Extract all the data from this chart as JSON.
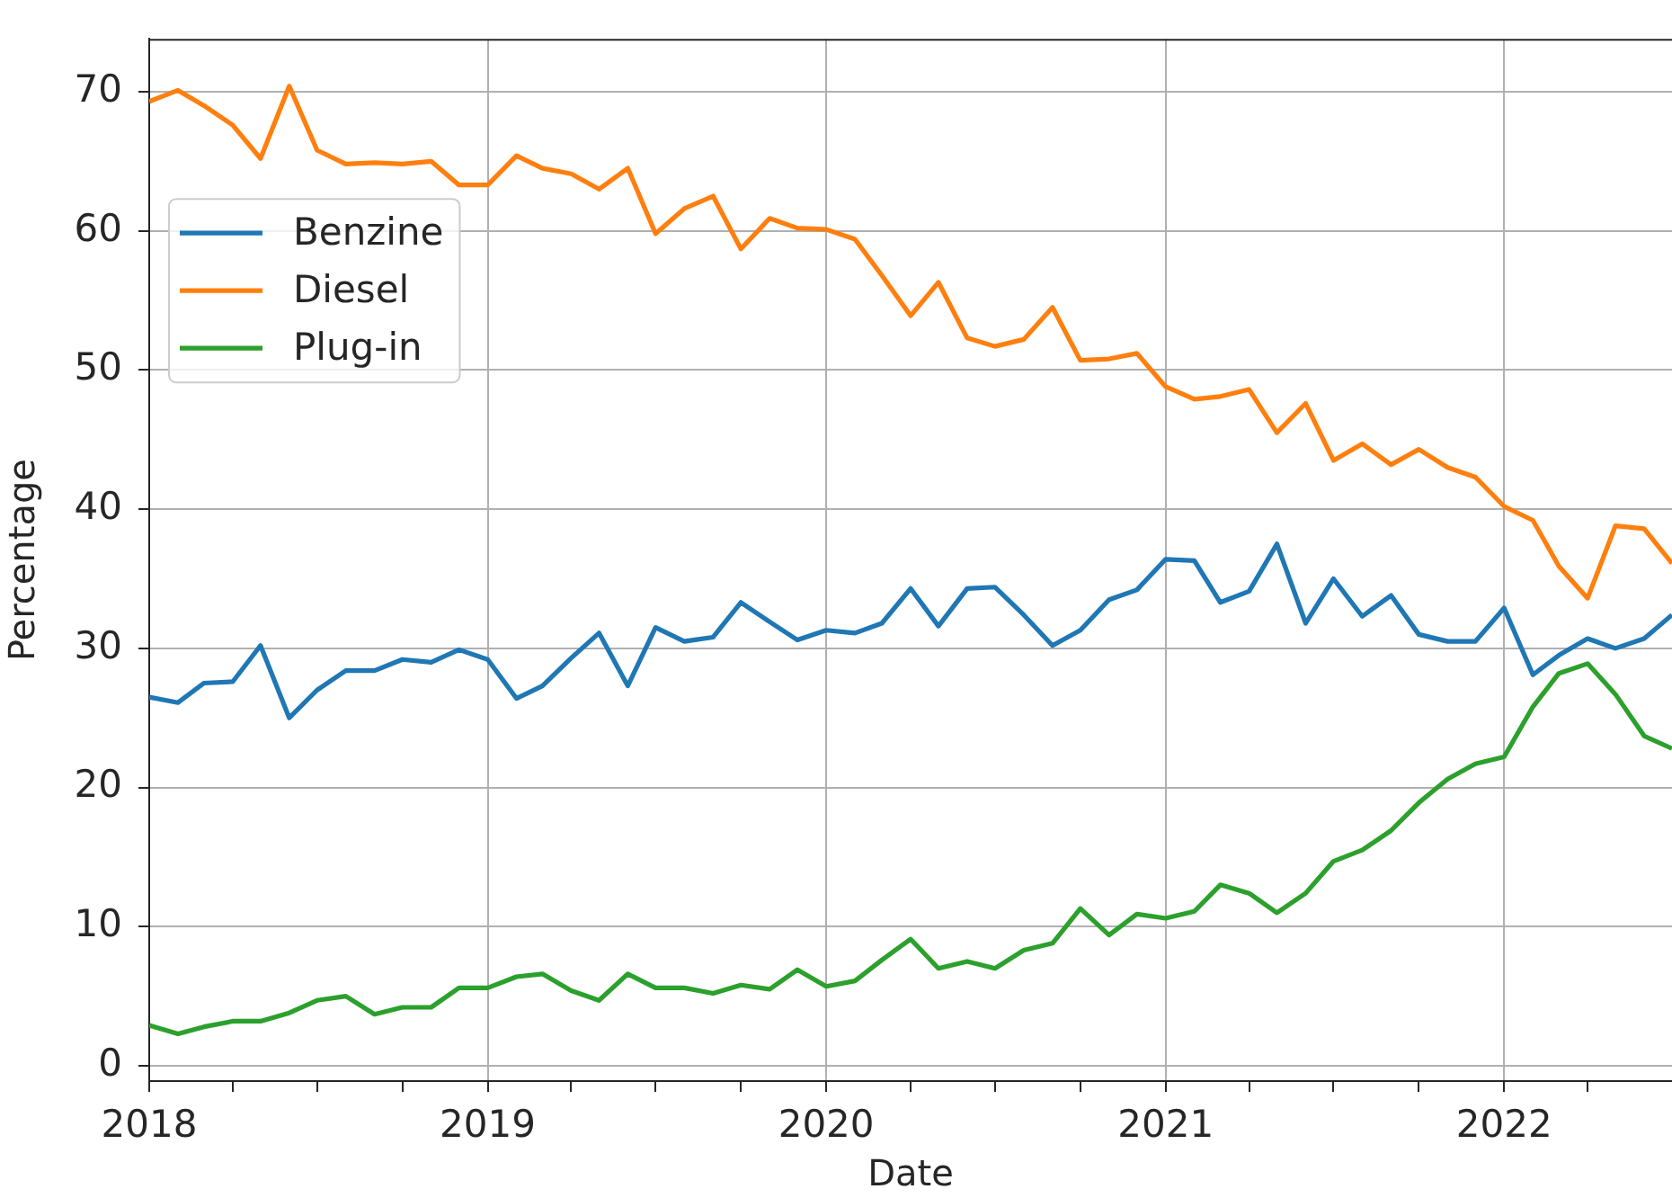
{
  "chart_data": {
    "type": "line",
    "xlabel": "Date",
    "ylabel": "Percentage",
    "x": [
      "2018-01",
      "2018-02",
      "2018-03",
      "2018-04",
      "2018-05",
      "2018-06",
      "2018-07",
      "2018-08",
      "2018-09",
      "2018-10",
      "2018-11",
      "2018-12",
      "2019-01",
      "2019-02",
      "2019-03",
      "2019-04",
      "2019-05",
      "2019-06",
      "2019-07",
      "2019-08",
      "2019-09",
      "2019-10",
      "2019-11",
      "2019-12",
      "2020-01",
      "2020-02",
      "2020-03",
      "2020-04",
      "2020-05",
      "2020-06",
      "2020-07",
      "2020-08",
      "2020-09",
      "2020-10",
      "2020-11",
      "2020-12",
      "2021-01",
      "2021-02",
      "2021-03",
      "2021-04",
      "2021-05",
      "2021-06",
      "2021-07",
      "2021-08",
      "2021-09",
      "2021-10",
      "2021-11",
      "2021-12",
      "2022-01",
      "2022-02",
      "2022-03",
      "2022-04",
      "2022-05",
      "2022-06",
      "2022-07"
    ],
    "series": [
      {
        "name": "Benzine",
        "color": "#1f77b4",
        "values": [
          26.5,
          26.1,
          27.5,
          27.6,
          30.2,
          25.0,
          27.0,
          28.4,
          28.4,
          29.2,
          29.0,
          29.9,
          29.2,
          26.4,
          27.3,
          29.3,
          31.1,
          27.3,
          31.5,
          30.5,
          30.8,
          33.3,
          31.9,
          30.6,
          31.3,
          31.1,
          31.8,
          34.3,
          31.6,
          34.3,
          34.4,
          32.4,
          30.2,
          31.3,
          33.5,
          34.2,
          36.4,
          36.3,
          33.3,
          34.1,
          37.5,
          31.8,
          35.0,
          32.3,
          33.8,
          31.0,
          30.5,
          30.5,
          32.9,
          28.1,
          29.5,
          30.7,
          30.0,
          30.7,
          32.4
        ]
      },
      {
        "name": "Diesel",
        "color": "#ff7f0e",
        "values": [
          69.3,
          70.1,
          69.0,
          67.6,
          65.2,
          70.4,
          65.8,
          64.8,
          64.9,
          64.8,
          65.0,
          63.3,
          63.3,
          65.4,
          64.5,
          64.1,
          63.0,
          64.5,
          59.8,
          61.6,
          62.5,
          58.7,
          60.9,
          60.2,
          60.1,
          59.4,
          56.8,
          53.9,
          56.3,
          52.3,
          51.7,
          52.2,
          54.5,
          50.7,
          50.8,
          51.2,
          48.8,
          47.9,
          48.1,
          48.6,
          45.5,
          47.6,
          43.5,
          44.7,
          43.2,
          44.3,
          43.0,
          42.3,
          40.2,
          39.2,
          35.9,
          33.6,
          38.8,
          38.6,
          36.1
        ]
      },
      {
        "name": "Plug-in",
        "color": "#2ca02c",
        "values": [
          2.9,
          2.3,
          2.8,
          3.2,
          3.2,
          3.8,
          4.7,
          5.0,
          3.7,
          4.2,
          4.2,
          5.6,
          5.6,
          6.4,
          6.6,
          5.4,
          4.7,
          6.6,
          5.6,
          5.6,
          5.2,
          5.8,
          5.5,
          6.9,
          5.7,
          6.1,
          7.6,
          9.1,
          7.0,
          7.5,
          7.0,
          8.3,
          8.8,
          11.3,
          9.4,
          10.9,
          10.6,
          11.1,
          13.0,
          12.4,
          11.0,
          12.4,
          14.7,
          15.5,
          16.9,
          18.9,
          20.6,
          21.7,
          22.2,
          25.8,
          28.2,
          28.9,
          26.7,
          23.7,
          22.8
        ]
      }
    ],
    "xlim": [
      "2018-01",
      "2022-07"
    ],
    "xticks": [
      "2018",
      {
        "value": "2018-04",
        "label": null
      },
      {
        "value": "2018-07",
        "label": null
      },
      {
        "value": "2018-10",
        "label": null
      },
      "2019",
      {
        "value": "2019-04",
        "label": null
      },
      {
        "value": "2019-07",
        "label": null
      },
      {
        "value": "2019-10",
        "label": null
      },
      "2020",
      {
        "value": "2020-04",
        "label": null
      },
      {
        "value": "2020-07",
        "label": null
      },
      {
        "value": "2020-10",
        "label": null
      },
      "2021",
      {
        "value": "2021-04",
        "label": null
      },
      {
        "value": "2021-07",
        "label": null
      },
      {
        "value": "2021-10",
        "label": null
      },
      "2022",
      {
        "value": "2022-04",
        "label": null
      }
    ],
    "ylim": [
      -1.1,
      73.8
    ],
    "yticks": [
      0,
      10,
      20,
      30,
      40,
      50,
      60,
      70
    ],
    "grid": true,
    "legend": "top left"
  }
}
